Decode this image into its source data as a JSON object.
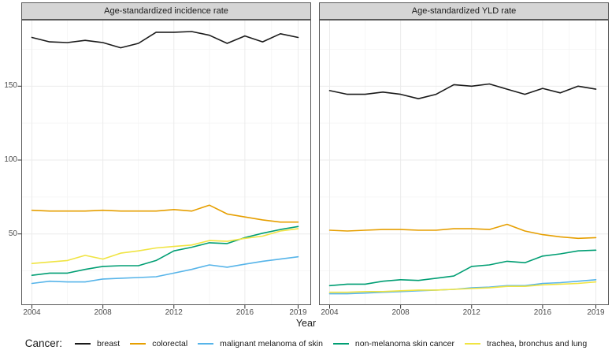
{
  "axes": {
    "x_label": "Year"
  },
  "legend": {
    "title": "Cancer:",
    "items": [
      {
        "label": "breast",
        "color": "#1a1a1a"
      },
      {
        "label": "colorectal",
        "color": "#E69F00"
      },
      {
        "label": "malignant melanoma of skin",
        "color": "#56B4E9"
      },
      {
        "label": "non-melanoma skin cancer",
        "color": "#009E73"
      },
      {
        "label": "trachea, bronchus and lung",
        "color": "#F0E442"
      }
    ]
  },
  "theme": {
    "strip_bg": "#d5d5d5",
    "strip_border": "#595959",
    "panel_border": "#595959",
    "grid_major": "#ebebeb",
    "grid_minor": "#f5f5f5",
    "tick": "#333333",
    "tick_label": "#4d4d4d"
  },
  "chart_data": [
    {
      "type": "line",
      "title": "Age-standardized incidence rate",
      "xlabel": "Year",
      "ylabel": "",
      "ylim": [
        2,
        195
      ],
      "x_ticks": [
        2004,
        2008,
        2012,
        2016,
        2019
      ],
      "y_ticks": [
        50,
        100,
        150
      ],
      "grid": true,
      "legend_position": "bottom",
      "x": [
        2004,
        2005,
        2006,
        2007,
        2008,
        2009,
        2010,
        2011,
        2012,
        2013,
        2014,
        2015,
        2016,
        2017,
        2018,
        2019
      ],
      "series": [
        {
          "name": "breast",
          "color": "#1a1a1a",
          "values": [
            183,
            180,
            179.5,
            181,
            179.5,
            176,
            179,
            186.5,
            186.5,
            187,
            184.5,
            179,
            184,
            180,
            185.5,
            183
          ]
        },
        {
          "name": "colorectal",
          "color": "#E69F00",
          "values": [
            66,
            65.5,
            65.5,
            65.5,
            66,
            65.5,
            65.5,
            65.5,
            66.5,
            65.5,
            69.5,
            63.5,
            61.5,
            59.5,
            58,
            58
          ]
        },
        {
          "name": "malignant melanoma of skin",
          "color": "#56B4E9",
          "values": [
            16.5,
            18,
            17.5,
            17.5,
            19.5,
            20,
            20.5,
            21,
            23.5,
            26,
            29,
            27.5,
            29.5,
            31.5,
            33,
            34.5
          ]
        },
        {
          "name": "non-melanoma skin cancer",
          "color": "#009E73",
          "values": [
            22,
            23.5,
            23.5,
            26,
            28,
            28.5,
            28.5,
            32,
            38.5,
            41,
            44,
            43.5,
            47.5,
            50.5,
            53,
            55
          ]
        },
        {
          "name": "trachea, bronchus and lung",
          "color": "#F0E442",
          "values": [
            30,
            31,
            32,
            35.5,
            33,
            37,
            38.5,
            40.5,
            41.5,
            42.5,
            45.5,
            45,
            47,
            48.5,
            52,
            53.5
          ]
        }
      ]
    },
    {
      "type": "line",
      "title": "Age-standardized YLD rate",
      "xlabel": "Year",
      "ylabel": "",
      "ylim": [
        2,
        195
      ],
      "x_ticks": [
        2004,
        2008,
        2012,
        2016,
        2019
      ],
      "y_ticks": [
        50,
        100,
        150
      ],
      "grid": true,
      "legend_position": "bottom",
      "x": [
        2004,
        2005,
        2006,
        2007,
        2008,
        2009,
        2010,
        2011,
        2012,
        2013,
        2014,
        2015,
        2016,
        2017,
        2018,
        2019
      ],
      "series": [
        {
          "name": "breast",
          "color": "#1a1a1a",
          "values": [
            147,
            144.5,
            144.5,
            146,
            144.5,
            141.5,
            144.5,
            151,
            150,
            151.5,
            148,
            144.5,
            148.5,
            145.5,
            150,
            148
          ]
        },
        {
          "name": "colorectal",
          "color": "#E69F00",
          "values": [
            52.5,
            52,
            52.5,
            53,
            53,
            52.5,
            52.5,
            53.5,
            53.5,
            53,
            56.5,
            52,
            49.5,
            48,
            47,
            47.5
          ]
        },
        {
          "name": "malignant melanoma of skin",
          "color": "#56B4E9",
          "values": [
            9.5,
            9.5,
            10,
            10.5,
            11,
            11.5,
            12,
            12.5,
            13.5,
            14,
            15,
            15,
            16.5,
            17,
            18,
            19
          ]
        },
        {
          "name": "non-melanoma skin cancer",
          "color": "#009E73",
          "values": [
            15,
            16,
            16,
            18,
            19,
            18.5,
            20,
            21.5,
            28,
            29,
            31.5,
            30.5,
            35,
            36.5,
            38.5,
            39
          ]
        },
        {
          "name": "trachea, bronchus and lung",
          "color": "#F0E442",
          "values": [
            10.5,
            10.5,
            11,
            11,
            11.5,
            12,
            12,
            12.5,
            13,
            13.5,
            14.5,
            14.5,
            15.5,
            16,
            16.5,
            17.5
          ]
        }
      ]
    }
  ]
}
